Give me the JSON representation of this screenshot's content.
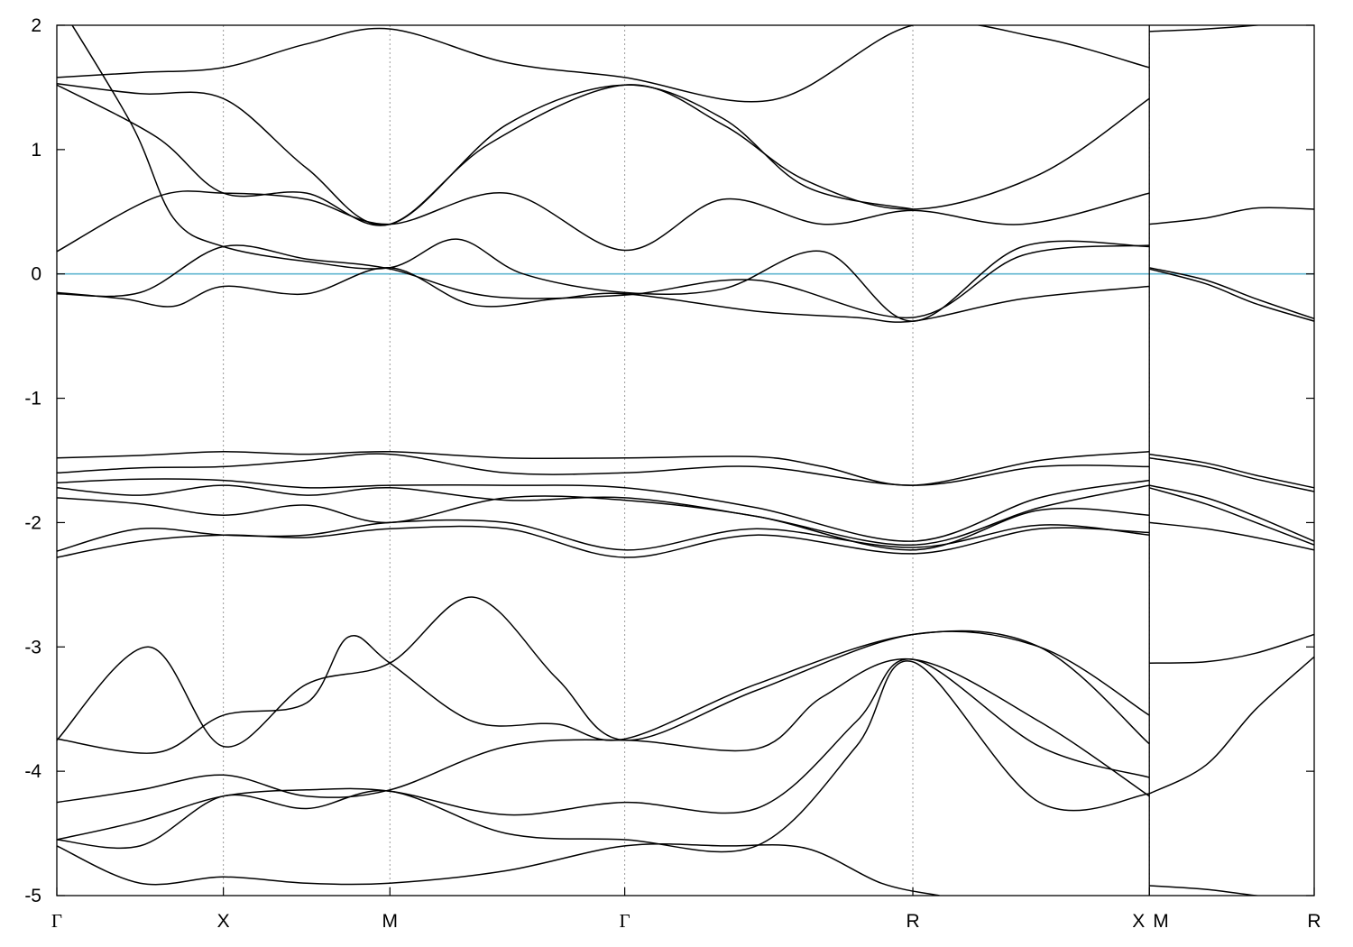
{
  "chart_data": {
    "type": "line",
    "title": "",
    "xlabel": "",
    "ylabel": "",
    "ylim": [
      -5,
      2
    ],
    "yticks": [
      2,
      1,
      0,
      -1,
      -2,
      -3,
      -4,
      -5
    ],
    "ytick_labels": [
      "2",
      "1",
      "0",
      "-1",
      "-2",
      "-3",
      "-4",
      "-5"
    ],
    "xlim": [
      0,
      7.55
    ],
    "kpoints": [
      {
        "label": "Γ",
        "x": 0.0,
        "serif": true
      },
      {
        "label": "X",
        "x": 1.0
      },
      {
        "label": "M",
        "x": 2.0
      },
      {
        "label": "Γ",
        "x": 3.41,
        "serif": true
      },
      {
        "label": "R",
        "x": 5.14
      },
      {
        "label": "X",
        "x": 6.56
      },
      {
        "label": "M",
        "x": 6.56
      },
      {
        "label": "R",
        "x": 7.55
      }
    ],
    "path_break_x": 6.56,
    "grid": "vertical-dotted-at-kpoints",
    "fermi_level": {
      "y": 0,
      "color": "#5fb4d0"
    },
    "line_color": "#000000",
    "series": [
      {
        "x": [
          0,
          0.5,
          1,
          1.5,
          2,
          2.7,
          3.41,
          4.3,
          5.14,
          5.9,
          6.56
        ],
        "y": [
          1.58,
          1.62,
          1.66,
          1.85,
          1.97,
          1.7,
          1.58,
          1.4,
          2.0,
          1.9,
          1.66
        ]
      },
      {
        "x": [
          0,
          0.5,
          1,
          1.5,
          2,
          2.7,
          3.41,
          4.0,
          4.5,
          5.14
        ],
        "y": [
          1.53,
          1.45,
          1.41,
          0.85,
          0.4,
          1.2,
          1.52,
          1.25,
          0.7,
          0.52
        ]
      },
      {
        "x": [
          0,
          0.6,
          1,
          1.5,
          2,
          2.6,
          3.41,
          4.0,
          4.5,
          5.14,
          5.9,
          6.56
        ],
        "y": [
          1.52,
          1.1,
          0.65,
          0.65,
          0.4,
          1.05,
          1.52,
          1.2,
          0.75,
          0.52,
          0.8,
          1.41
        ]
      },
      {
        "x": [
          0,
          0.6,
          1,
          1.5,
          2,
          2.7,
          3.41,
          4.0,
          4.6,
          5.14,
          5.8,
          6.56
        ],
        "y": [
          0.18,
          0.62,
          0.65,
          0.6,
          0.4,
          0.65,
          0.19,
          0.6,
          0.4,
          0.51,
          0.4,
          0.65
        ]
      },
      {
        "x": [
          0,
          0.45,
          0.7,
          1,
          1.5,
          2,
          2.4,
          2.8,
          3.41,
          4.0,
          4.6,
          5.14,
          5.8,
          6.56
        ],
        "y": [
          2.2,
          1.2,
          0.45,
          0.22,
          0.1,
          0.05,
          0.28,
          0.0,
          -0.15,
          -0.12,
          0.18,
          -0.38,
          0.22,
          0.22
        ]
      },
      {
        "x": [
          0,
          0.4,
          0.7,
          1,
          1.5,
          2,
          2.5,
          3.0,
          3.41,
          4.2,
          4.8,
          5.14,
          5.8,
          6.56
        ],
        "y": [
          -0.15,
          -0.2,
          -0.26,
          -0.1,
          -0.16,
          0.05,
          -0.25,
          -0.2,
          -0.16,
          -0.3,
          -0.35,
          -0.38,
          -0.2,
          -0.1
        ]
      },
      {
        "x": [
          0,
          0.5,
          1,
          1.5,
          2,
          2.6,
          3.41,
          4.2,
          5.14,
          5.8,
          6.56
        ],
        "y": [
          -0.16,
          -0.15,
          0.22,
          0.12,
          0.04,
          -0.18,
          -0.17,
          -0.05,
          -0.35,
          0.15,
          0.23
        ]
      },
      {
        "x": [
          0,
          0.5,
          1,
          1.5,
          2,
          2.7,
          3.41,
          4.2,
          4.6,
          5.14,
          5.9,
          6.56
        ],
        "y": [
          -1.48,
          -1.46,
          -1.43,
          -1.45,
          -1.43,
          -1.48,
          -1.48,
          -1.47,
          -1.55,
          -1.7,
          -1.5,
          -1.43
        ]
      },
      {
        "x": [
          0,
          0.5,
          1,
          1.5,
          2,
          2.7,
          3.41,
          4.2,
          5.14,
          5.9,
          6.56
        ],
        "y": [
          -1.6,
          -1.56,
          -1.55,
          -1.5,
          -1.45,
          -1.6,
          -1.6,
          -1.55,
          -1.7,
          -1.55,
          -1.55
        ]
      },
      {
        "x": [
          0,
          0.5,
          1,
          1.5,
          2,
          2.7,
          3.41,
          4.2,
          5.14,
          5.9,
          6.56
        ],
        "y": [
          -1.68,
          -1.65,
          -1.66,
          -1.72,
          -1.7,
          -1.7,
          -1.72,
          -1.88,
          -2.15,
          -1.8,
          -1.66
        ]
      },
      {
        "x": [
          0,
          0.5,
          1,
          1.5,
          2,
          2.7,
          3.41,
          4.2,
          5.14,
          5.9,
          6.56
        ],
        "y": [
          -1.72,
          -1.78,
          -1.7,
          -1.78,
          -1.72,
          -1.82,
          -1.8,
          -1.95,
          -2.18,
          -1.88,
          -1.7
        ]
      },
      {
        "x": [
          0,
          0.5,
          1,
          1.5,
          2,
          2.7,
          3.41,
          4.2,
          5.14,
          5.9,
          6.56
        ],
        "y": [
          -1.8,
          -1.85,
          -1.94,
          -1.86,
          -2.0,
          -1.8,
          -1.82,
          -1.95,
          -2.22,
          -1.9,
          -1.94
        ]
      },
      {
        "x": [
          0,
          0.5,
          1,
          1.5,
          2,
          2.7,
          3.41,
          4.2,
          5.14,
          5.9,
          6.56
        ],
        "y": [
          -2.23,
          -2.05,
          -2.1,
          -2.1,
          -2.0,
          -2.0,
          -2.22,
          -2.05,
          -2.2,
          -2.02,
          -2.1
        ]
      },
      {
        "x": [
          0,
          0.5,
          1,
          1.5,
          2,
          2.7,
          3.41,
          4.2,
          5.14,
          5.9,
          6.56
        ],
        "y": [
          -2.28,
          -2.15,
          -2.1,
          -2.12,
          -2.05,
          -2.05,
          -2.28,
          -2.1,
          -2.25,
          -2.05,
          -2.08
        ]
      },
      {
        "x": [
          0,
          0.55,
          1,
          1.5,
          2,
          2.5,
          3.0,
          3.41,
          4.2,
          5.14,
          5.9,
          6.56
        ],
        "y": [
          -3.75,
          -3.0,
          -3.8,
          -3.3,
          -3.13,
          -2.6,
          -3.25,
          -3.75,
          -3.35,
          -2.9,
          -3.0,
          -3.55
        ]
      },
      {
        "x": [
          0,
          0.6,
          1,
          1.5,
          1.75,
          2,
          2.5,
          3.0,
          3.41,
          4.2,
          5.14,
          5.9,
          6.56
        ],
        "y": [
          -3.74,
          -3.85,
          -3.55,
          -3.45,
          -2.92,
          -3.13,
          -3.6,
          -3.62,
          -3.74,
          -3.3,
          -2.9,
          -3.0,
          -3.78
        ]
      },
      {
        "x": [
          0,
          0.5,
          1,
          1.5,
          2,
          2.7,
          3.41,
          4.2,
          4.6,
          5.14,
          5.9,
          6.56
        ],
        "y": [
          -4.25,
          -4.15,
          -4.03,
          -4.2,
          -4.15,
          -3.8,
          -3.75,
          -3.82,
          -3.4,
          -3.1,
          -3.6,
          -4.2
        ]
      },
      {
        "x": [
          0,
          0.5,
          1,
          1.5,
          2,
          2.7,
          3.41,
          4.2,
          4.8,
          5.14,
          5.9,
          6.56
        ],
        "y": [
          -4.55,
          -4.4,
          -4.2,
          -4.15,
          -4.16,
          -4.35,
          -4.25,
          -4.3,
          -3.6,
          -3.1,
          -3.8,
          -4.05
        ]
      },
      {
        "x": [
          0,
          0.5,
          1,
          1.5,
          2,
          2.7,
          3.41,
          4.2,
          4.8,
          5.14,
          5.9,
          6.56
        ],
        "y": [
          -4.55,
          -4.6,
          -4.2,
          -4.3,
          -4.16,
          -4.5,
          -4.55,
          -4.6,
          -3.8,
          -3.12,
          -4.25,
          -4.18
        ]
      },
      {
        "x": [
          0,
          0.5,
          1,
          1.5,
          2,
          2.7,
          3.41,
          4.0,
          4.5,
          4.95,
          5.3
        ],
        "y": [
          -4.6,
          -4.9,
          -4.85,
          -4.9,
          -4.9,
          -4.8,
          -4.6,
          -4.6,
          -4.62,
          -4.9,
          -5.0
        ]
      },
      {
        "x": [
          6.56,
          6.9,
          7.2,
          7.55
        ],
        "y": [
          1.95,
          1.97,
          2.0,
          2.05
        ]
      },
      {
        "x": [
          6.56,
          6.9,
          7.2,
          7.55
        ],
        "y": [
          0.4,
          0.45,
          0.53,
          0.52
        ]
      },
      {
        "x": [
          6.56,
          6.9,
          7.2,
          7.55
        ],
        "y": [
          0.05,
          -0.05,
          -0.2,
          -0.36
        ]
      },
      {
        "x": [
          6.56,
          6.9,
          7.2,
          7.55
        ],
        "y": [
          0.04,
          -0.08,
          -0.24,
          -0.38
        ]
      },
      {
        "x": [
          6.56,
          6.9,
          7.2,
          7.55
        ],
        "y": [
          -1.45,
          -1.52,
          -1.62,
          -1.72
        ]
      },
      {
        "x": [
          6.56,
          6.9,
          7.2,
          7.55
        ],
        "y": [
          -1.48,
          -1.55,
          -1.65,
          -1.75
        ]
      },
      {
        "x": [
          6.56,
          6.9,
          7.2,
          7.55
        ],
        "y": [
          -1.7,
          -1.8,
          -1.95,
          -2.15
        ]
      },
      {
        "x": [
          6.56,
          6.9,
          7.2,
          7.55
        ],
        "y": [
          -1.72,
          -1.85,
          -2.0,
          -2.18
        ]
      },
      {
        "x": [
          6.56,
          6.9,
          7.2,
          7.55
        ],
        "y": [
          -2.0,
          -2.05,
          -2.12,
          -2.22
        ]
      },
      {
        "x": [
          6.56,
          6.9,
          7.2,
          7.55
        ],
        "y": [
          -3.13,
          -3.12,
          -3.05,
          -2.9
        ]
      },
      {
        "x": [
          6.56,
          6.9,
          7.2,
          7.55
        ],
        "y": [
          -4.18,
          -3.95,
          -3.5,
          -3.08
        ]
      },
      {
        "x": [
          6.56,
          6.9,
          7.2,
          7.55
        ],
        "y": [
          -4.92,
          -4.95,
          -5.0,
          -5.05
        ]
      }
    ]
  }
}
